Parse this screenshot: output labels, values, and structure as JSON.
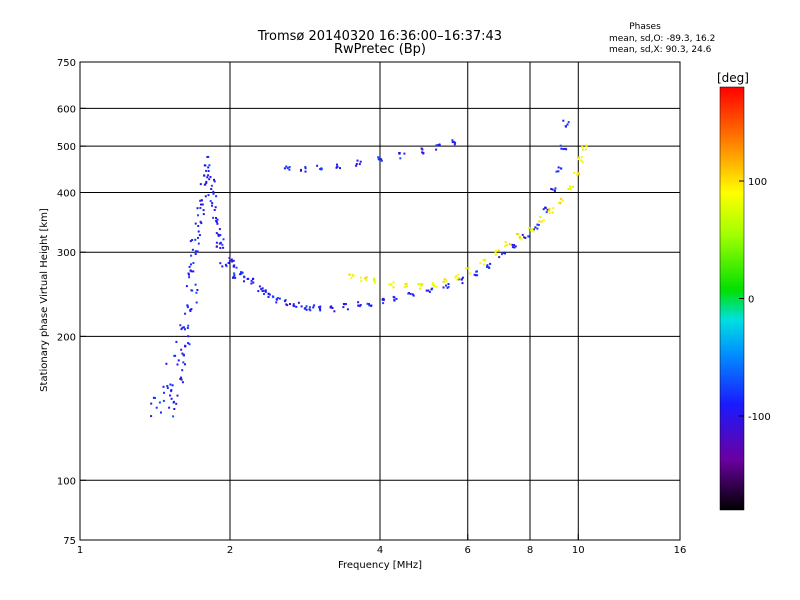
{
  "chart_data": {
    "type": "scatter",
    "title": "Tromsø 20140320 16:36:00–16:37:43",
    "subtitle": "RwPretec (Bp)",
    "xlabel": "Frequency [MHz]",
    "ylabel": "Stationary phase Virtual Height [km]",
    "x_scale": "log",
    "y_scale": "log",
    "xlim": [
      1,
      16
    ],
    "ylim": [
      75,
      750
    ],
    "x_ticks": [
      1,
      2,
      4,
      6,
      8,
      10,
      16
    ],
    "y_ticks": [
      75,
      100,
      200,
      300,
      400,
      500,
      600,
      750
    ],
    "grid_x": [
      2,
      4,
      6,
      8,
      10
    ],
    "grid_y": [
      100,
      200,
      300,
      400,
      500,
      600
    ],
    "stats": {
      "heading": "Phases",
      "line_o": "mean, sd,O: -89.3, 16.2",
      "line_x": "mean, sd,X:  90.3, 24.6"
    },
    "colorbar": {
      "label": "[deg]",
      "range": [
        -180,
        180
      ],
      "ticks": [
        {
          "v": 100,
          "label": "100"
        },
        {
          "v": 0,
          "label": "0"
        },
        {
          "v": -100,
          "label": "-100"
        }
      ]
    },
    "series": [
      {
        "mode": "O",
        "phase": -90,
        "points": [
          [
            1.52,
            150
          ],
          [
            1.55,
            145
          ],
          [
            1.58,
            160
          ],
          [
            1.6,
            175
          ],
          [
            1.62,
            190
          ],
          [
            1.63,
            205
          ],
          [
            1.64,
            220
          ],
          [
            1.65,
            240
          ],
          [
            1.66,
            260
          ],
          [
            1.67,
            280
          ],
          [
            1.68,
            300
          ],
          [
            1.7,
            320
          ],
          [
            1.72,
            340
          ],
          [
            1.74,
            370
          ],
          [
            1.76,
            400
          ],
          [
            1.78,
            430
          ],
          [
            1.8,
            460
          ],
          [
            1.82,
            420
          ],
          [
            1.84,
            380
          ],
          [
            1.86,
            350
          ],
          [
            1.88,
            330
          ],
          [
            1.9,
            315
          ],
          [
            1.95,
            300
          ],
          [
            2.0,
            290
          ],
          [
            2.05,
            280
          ],
          [
            2.1,
            272
          ],
          [
            2.2,
            262
          ],
          [
            2.3,
            252
          ],
          [
            2.4,
            245
          ],
          [
            2.5,
            240
          ],
          [
            2.6,
            236
          ],
          [
            2.7,
            233
          ],
          [
            2.8,
            231
          ],
          [
            2.9,
            230
          ],
          [
            3.0,
            230
          ],
          [
            3.2,
            230
          ],
          [
            3.4,
            232
          ],
          [
            3.6,
            234
          ],
          [
            3.8,
            236
          ],
          [
            4.0,
            238
          ],
          [
            4.3,
            241
          ],
          [
            4.6,
            245
          ],
          [
            5.0,
            250
          ],
          [
            5.4,
            256
          ],
          [
            5.8,
            263
          ],
          [
            6.2,
            272
          ],
          [
            6.6,
            283
          ],
          [
            7.0,
            297
          ],
          [
            7.4,
            310
          ],
          [
            7.8,
            325
          ],
          [
            8.2,
            340
          ],
          [
            8.6,
            370
          ],
          [
            8.9,
            410
          ],
          [
            9.1,
            450
          ],
          [
            9.3,
            500
          ],
          [
            9.4,
            560
          ],
          [
            1.4,
            140
          ],
          [
            1.45,
            148
          ],
          [
            1.5,
            165
          ],
          [
            1.56,
            185
          ],
          [
            1.6,
            200
          ],
          [
            1.69,
            250
          ],
          [
            1.73,
            360
          ],
          [
            1.79,
            440
          ],
          [
            1.85,
            400
          ],
          [
            1.92,
            300
          ],
          [
            2.02,
            270
          ],
          [
            2.15,
            265
          ],
          [
            2.35,
            248
          ]
        ],
        "branch": [
          [
            2.6,
            455
          ],
          [
            2.8,
            450
          ],
          [
            3.0,
            452
          ],
          [
            3.3,
            457
          ],
          [
            3.6,
            462
          ],
          [
            4.0,
            470
          ],
          [
            4.4,
            480
          ],
          [
            4.8,
            490
          ],
          [
            5.2,
            500
          ],
          [
            5.6,
            510
          ]
        ]
      },
      {
        "mode": "X",
        "phase": 90,
        "points": [
          [
            3.5,
            270
          ],
          [
            3.7,
            266
          ],
          [
            3.9,
            262
          ],
          [
            4.2,
            258
          ],
          [
            4.5,
            256
          ],
          [
            4.8,
            256
          ],
          [
            5.1,
            258
          ],
          [
            5.4,
            262
          ],
          [
            5.7,
            268
          ],
          [
            6.0,
            276
          ],
          [
            6.4,
            287
          ],
          [
            6.8,
            300
          ],
          [
            7.2,
            312
          ],
          [
            7.6,
            325
          ],
          [
            8.0,
            338
          ],
          [
            8.4,
            352
          ],
          [
            8.8,
            368
          ],
          [
            9.2,
            385
          ],
          [
            9.6,
            410
          ],
          [
            9.9,
            440
          ],
          [
            10.1,
            470
          ],
          [
            10.2,
            500
          ]
        ]
      }
    ]
  }
}
